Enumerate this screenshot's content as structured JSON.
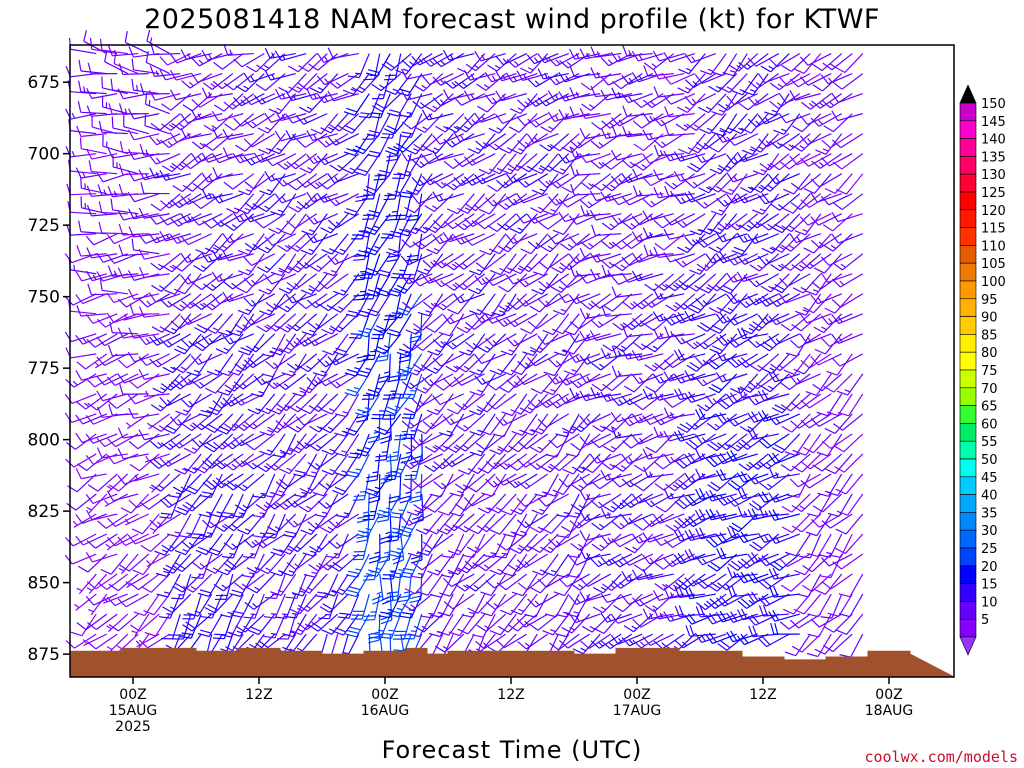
{
  "chart_data": {
    "type": "wind-barb-profile",
    "title": "2025081418 NAM forecast wind profile (kt) for KTWF",
    "xlabel": "Forecast Time (UTC)",
    "ylabel": "",
    "y_axis": {
      "ticks": [
        675,
        700,
        725,
        750,
        775,
        800,
        825,
        850,
        875
      ],
      "range": [
        662,
        883
      ],
      "inverted": true
    },
    "x_axis": {
      "range_hours_from_start": [
        -4,
        66
      ],
      "ticks": [
        {
          "hour": 0,
          "line1": "00Z",
          "line2": "15AUG",
          "line3": "2025"
        },
        {
          "hour": 12,
          "line1": "12Z",
          "line2": "",
          "line3": ""
        },
        {
          "hour": 24,
          "line1": "00Z",
          "line2": "16AUG",
          "line3": ""
        },
        {
          "hour": 36,
          "line1": "12Z",
          "line2": "",
          "line3": ""
        },
        {
          "hour": 48,
          "line1": "00Z",
          "line2": "17AUG",
          "line3": ""
        },
        {
          "hour": 60,
          "line1": "12Z",
          "line2": "",
          "line3": ""
        },
        {
          "hour": 72,
          "line1": "00Z",
          "line2": "18AUG",
          "line3": ""
        }
      ]
    },
    "colorbar": {
      "values": [
        150,
        145,
        140,
        135,
        130,
        125,
        120,
        115,
        110,
        105,
        100,
        95,
        90,
        85,
        80,
        75,
        70,
        65,
        60,
        55,
        50,
        45,
        40,
        35,
        30,
        25,
        20,
        15,
        10,
        5
      ],
      "colors": [
        "#cc00cc",
        "#ff00cc",
        "#ff0099",
        "#ff0066",
        "#ff0033",
        "#ff0000",
        "#ff1a00",
        "#ff3300",
        "#e65c00",
        "#ee7a00",
        "#ff9900",
        "#ffb300",
        "#ffcc00",
        "#ffee00",
        "#ffff00",
        "#ccff00",
        "#99ff00",
        "#33ff33",
        "#00ee66",
        "#00ffaa",
        "#00ffee",
        "#00ccff",
        "#00aaff",
        "#0088ff",
        "#0066ff",
        "#0044ff",
        "#0000ff",
        "#3300ff",
        "#6600ff",
        "#8800ff"
      ],
      "top_arrow_color": "#000000",
      "bottom_arrow_color": "#9933ff"
    },
    "terrain": {
      "color": "#a0522d",
      "surface_pressure_profile": [
        {
          "hour": -4,
          "p": 874
        },
        {
          "hour": -1,
          "p": 873
        },
        {
          "hour": 2,
          "p": 873
        },
        {
          "hour": 6,
          "p": 874
        },
        {
          "hour": 10,
          "p": 873
        },
        {
          "hour": 14,
          "p": 874
        },
        {
          "hour": 18,
          "p": 875
        },
        {
          "hour": 22,
          "p": 874
        },
        {
          "hour": 26,
          "p": 873
        },
        {
          "hour": 28,
          "p": 875
        },
        {
          "hour": 30,
          "p": 874
        },
        {
          "hour": 36,
          "p": 874
        },
        {
          "hour": 42,
          "p": 875
        },
        {
          "hour": 46,
          "p": 873
        },
        {
          "hour": 52,
          "p": 874
        },
        {
          "hour": 58,
          "p": 876
        },
        {
          "hour": 62,
          "p": 877
        },
        {
          "hour": 66,
          "p": 876
        },
        {
          "hour": 70,
          "p": 874
        },
        {
          "hour": 74,
          "p": 875
        }
      ]
    },
    "barbs": {
      "hour_step": 1,
      "pressure_levels": [
        665,
        672,
        679,
        686,
        693,
        700,
        707,
        714,
        721,
        728,
        735,
        742,
        749,
        756,
        763,
        770,
        777,
        784,
        791,
        798,
        805,
        812,
        819,
        826,
        833,
        840,
        847,
        854,
        861,
        868
      ],
      "wind_regimes": [
        {
          "hours": [
            -4,
            4
          ],
          "dir_upper": 280,
          "dir_lower": 230,
          "speed_upper": 12,
          "speed_lower": 8
        },
        {
          "hours": [
            4,
            12
          ],
          "dir_upper": 250,
          "dir_lower": 210,
          "speed_upper": 12,
          "speed_lower": 18
        },
        {
          "hours": [
            12,
            22
          ],
          "dir_upper": 240,
          "dir_lower": 215,
          "speed_upper": 14,
          "speed_lower": 16
        },
        {
          "hours": [
            22,
            28
          ],
          "dir_upper": 210,
          "dir_lower": 190,
          "speed_upper": 18,
          "speed_lower": 28
        },
        {
          "hours": [
            28,
            44
          ],
          "dir_upper": 240,
          "dir_lower": 220,
          "speed_upper": 14,
          "speed_lower": 12
        },
        {
          "hours": [
            44,
            54
          ],
          "dir_upper": 250,
          "dir_lower": 240,
          "speed_upper": 12,
          "speed_lower": 14
        },
        {
          "hours": [
            54,
            64
          ],
          "dir_upper": 230,
          "dir_lower": 250,
          "speed_upper": 14,
          "speed_lower": 20
        },
        {
          "hours": [
            64,
            71
          ],
          "dir_upper": 240,
          "dir_lower": 220,
          "speed_upper": 12,
          "speed_lower": 10
        }
      ]
    }
  },
  "credit": "coolwx.com/models"
}
